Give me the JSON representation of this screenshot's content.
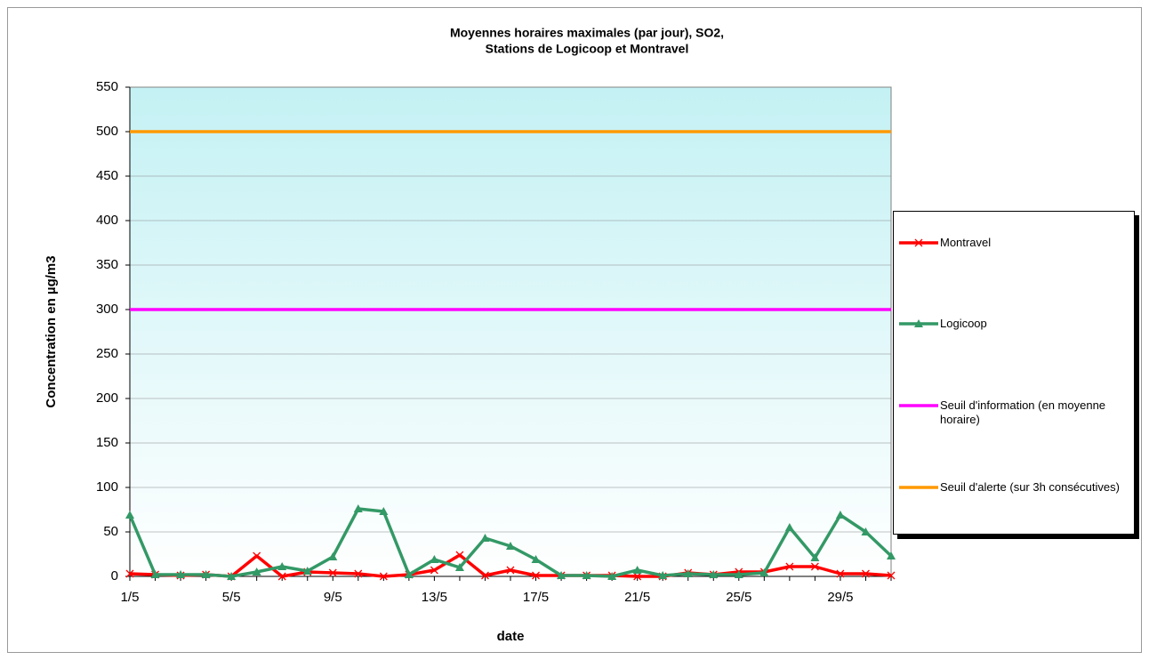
{
  "chart_data": {
    "type": "line",
    "title": [
      "Moyennes horaires maximales (par jour), SO2,",
      "Stations de Logicoop et Montravel"
    ],
    "x_label": "date",
    "y_label": "Concentration en µg/m3",
    "categories": [
      "1/5",
      null,
      null,
      null,
      "5/5",
      null,
      null,
      null,
      "9/5",
      null,
      null,
      null,
      "13/5",
      null,
      null,
      null,
      "17/5",
      null,
      null,
      null,
      "21/5",
      null,
      null,
      null,
      "25/5",
      null,
      null,
      null,
      "29/5",
      null,
      null
    ],
    "series": [
      {
        "name": "Montravel",
        "color": "#ff0000",
        "marker": "x",
        "values": [
          3,
          2,
          1,
          2,
          0,
          23,
          0,
          5,
          4,
          3,
          0,
          2,
          7,
          24,
          1,
          7,
          1,
          1,
          1,
          1,
          0,
          0,
          4,
          2,
          5,
          5,
          11,
          11,
          3,
          3,
          1
        ]
      },
      {
        "name": "Logicoop",
        "color": "#339966",
        "marker": "triangle",
        "values": [
          69,
          2,
          2,
          2,
          0,
          5,
          11,
          6,
          22,
          76,
          73,
          2,
          19,
          10,
          43,
          34,
          19,
          1,
          1,
          0,
          7,
          1,
          3,
          2,
          2,
          4,
          55,
          21,
          69,
          50,
          23
        ]
      },
      {
        "name": "Seuil d'information (en moyenne horaire)",
        "color": "#ff00ff",
        "marker": "none",
        "values": [
          300,
          300,
          300,
          300,
          300,
          300,
          300,
          300,
          300,
          300,
          300,
          300,
          300,
          300,
          300,
          300,
          300,
          300,
          300,
          300,
          300,
          300,
          300,
          300,
          300,
          300,
          300,
          300,
          300,
          300,
          300
        ]
      },
      {
        "name": "Seuil d'alerte (sur 3h consécutives)",
        "color": "#ff9900",
        "marker": "none",
        "values": [
          500,
          500,
          500,
          500,
          500,
          500,
          500,
          500,
          500,
          500,
          500,
          500,
          500,
          500,
          500,
          500,
          500,
          500,
          500,
          500,
          500,
          500,
          500,
          500,
          500,
          500,
          500,
          500,
          500,
          500,
          500
        ]
      }
    ],
    "ylim": [
      0,
      550
    ],
    "yticks": [
      0,
      50,
      100,
      150,
      200,
      250,
      300,
      350,
      400,
      450,
      500,
      550
    ],
    "grid": true,
    "legend": "right"
  }
}
